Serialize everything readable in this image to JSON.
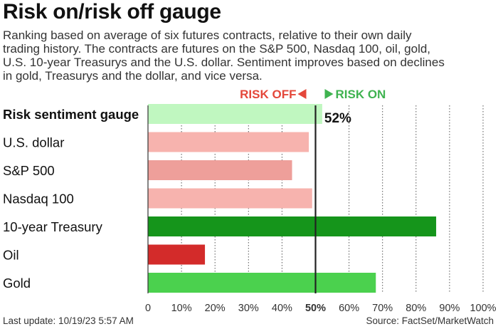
{
  "title": "Risk on/risk off gauge",
  "subtitle_lines": [
    "Ranking based on average of six futures contracts, relative to their own daily",
    "trading history. The contracts are futures on the S&P 500, Nasdaq 100, oil, gold,",
    "U.S. 10-year Treasurys and the U.S. dollar. Sentiment improves based on declines",
    "in gold, Treasurys and the dollar, and vice versa."
  ],
  "legend": {
    "risk_off": "RISK OFF",
    "risk_on": "RISK ON",
    "risk_off_color": "#e4473a",
    "risk_on_color": "#3fb350"
  },
  "chart_data": {
    "type": "bar",
    "orientation": "horizontal",
    "categories": [
      "Risk sentiment gauge",
      "U.S. dollar",
      "S&P 500",
      "Nasdaq 100",
      "10-year Treasury",
      "Oil",
      "Gold"
    ],
    "values": [
      52,
      48,
      43,
      49,
      86,
      17,
      68
    ],
    "colors": [
      "#c0f7c0",
      "#f7b3ae",
      "#ee9f9a",
      "#f7b3ae",
      "#15951b",
      "#d32b2a",
      "#4bd14e"
    ],
    "bold_categories": [
      "Risk sentiment gauge"
    ],
    "value_labels": [
      {
        "category": "Risk sentiment gauge",
        "text": "52%"
      }
    ],
    "xlim": [
      0,
      100
    ],
    "xticks": [
      "0",
      "10%",
      "20%",
      "30%",
      "40%",
      "50%",
      "60%",
      "70%",
      "80%",
      "90%",
      "100%"
    ],
    "bold_tick": "50%",
    "grid": "vertical dotted",
    "midline": 50
  },
  "footer": {
    "last_update": "Last update: 10/19/23 5:57 AM",
    "source": "Source: FactSet/MarketWatch"
  }
}
